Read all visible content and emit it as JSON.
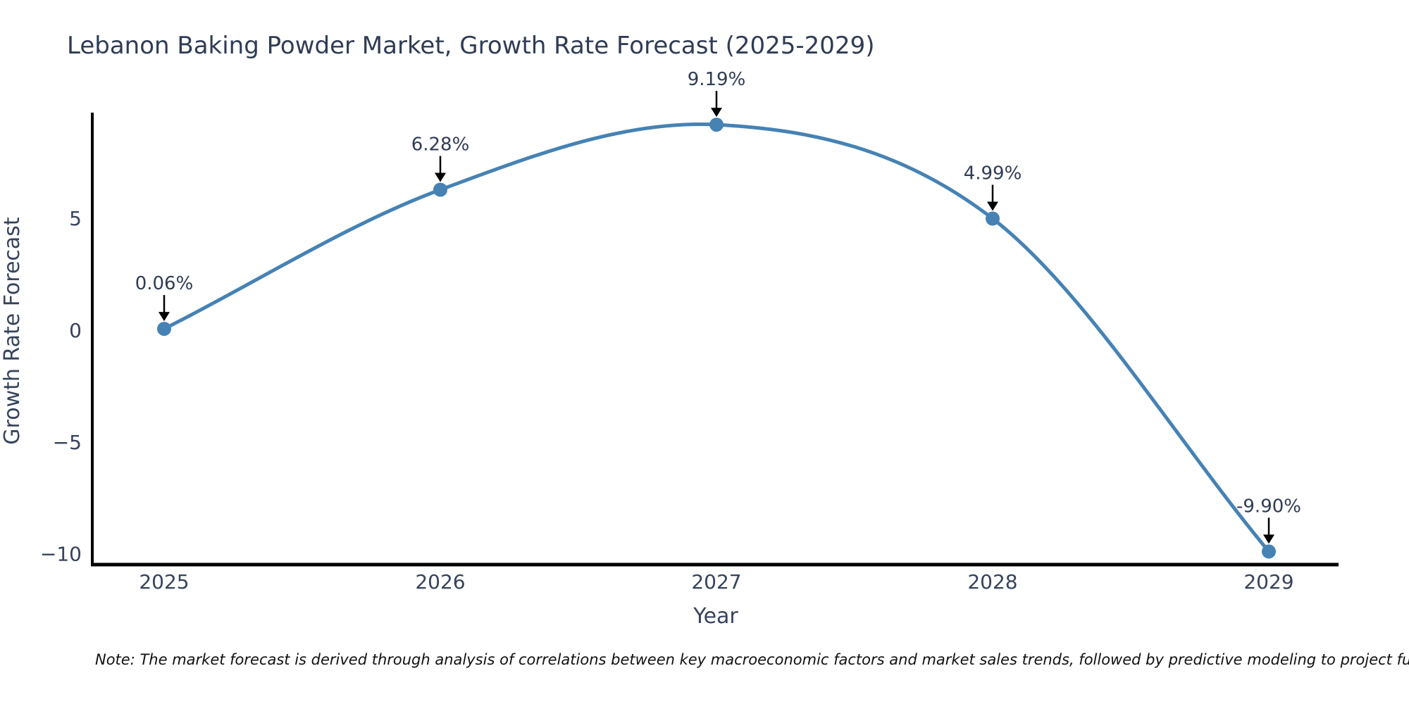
{
  "title": "Lebanon Baking Powder Market, Growth Rate Forecast (2025-2029)",
  "note": {
    "text": "Note: The market forecast is derived through analysis of correlations between key macroeconomic factors and market sales trends, followed by predictive modeling to project future sales"
  },
  "colors": {
    "line": "#4682b4",
    "marker": "#4682b4",
    "arrow": "#000000",
    "spine": "#000000",
    "title": "#2f3c55",
    "tick": "#36435c",
    "note": "#111111",
    "background": "#ffffff"
  },
  "chart_data": {
    "type": "line",
    "title": "Lebanon Baking Powder Market, Growth Rate Forecast (2025-2029)",
    "xlabel": "Year",
    "ylabel": "Growth Rate Forecast",
    "x": [
      2025,
      2026,
      2027,
      2028,
      2029
    ],
    "series": [
      {
        "name": "Growth Rate Forecast",
        "values": [
          0.06,
          6.28,
          9.19,
          4.99,
          -9.9
        ]
      }
    ],
    "point_labels": [
      "0.06%",
      "6.28%",
      "9.19%",
      "4.99%",
      "-9.90%"
    ],
    "xtick_labels": [
      "2025",
      "2026",
      "2027",
      "2028",
      "2029"
    ],
    "yticks": [
      5,
      0,
      -5,
      -10
    ],
    "ytick_labels": [
      "5",
      "0",
      "−5",
      "−10"
    ],
    "ylim": [
      -10.5,
      9.75
    ],
    "xlim": [
      2024.74,
      2029.26
    ],
    "grid": false,
    "legend": false,
    "line_smooth": true,
    "markers": "circle",
    "annotation_arrows": true
  }
}
